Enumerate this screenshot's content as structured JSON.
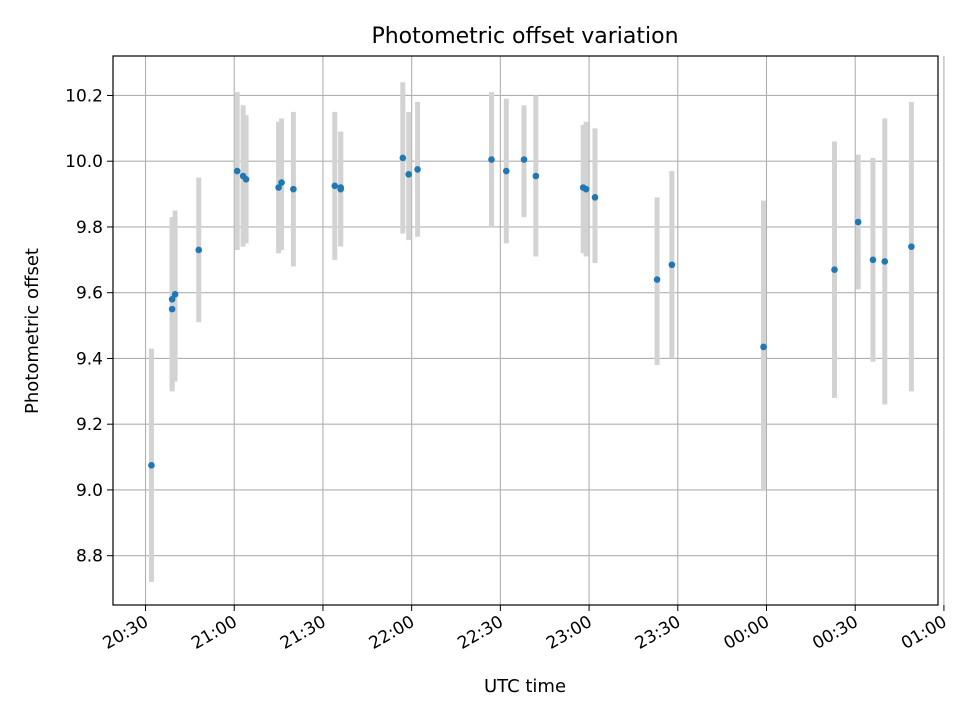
{
  "chart_data": {
    "type": "scatter",
    "title": "Photometric offset variation",
    "xlabel": "UTC time",
    "ylabel": "Photometric offset",
    "grid": true,
    "xlim": [
      "20:19",
      "00:58"
    ],
    "ylim": [
      8.65,
      10.32
    ],
    "x_ticks": [
      {
        "x": "20:30",
        "label": "20:30"
      },
      {
        "x": "21:00",
        "label": "21:00"
      },
      {
        "x": "21:30",
        "label": "21:30"
      },
      {
        "x": "22:00",
        "label": "22:00"
      },
      {
        "x": "22:30",
        "label": "22:30"
      },
      {
        "x": "23:00",
        "label": "23:00"
      },
      {
        "x": "23:30",
        "label": "23:30"
      },
      {
        "x": "00:00",
        "label": "00:00"
      },
      {
        "x": "00:30",
        "label": "00:30"
      },
      {
        "x": "01:00",
        "label": "01:00"
      }
    ],
    "y_ticks": [
      {
        "y": 8.8,
        "label": "8.8"
      },
      {
        "y": 9.0,
        "label": "9.0"
      },
      {
        "y": 9.2,
        "label": "9.2"
      },
      {
        "y": 9.4,
        "label": "9.4"
      },
      {
        "y": 9.6,
        "label": "9.6"
      },
      {
        "y": 9.8,
        "label": "9.8"
      },
      {
        "y": 10.0,
        "label": "10.0"
      },
      {
        "y": 10.2,
        "label": "10.2"
      }
    ],
    "series": [
      {
        "color": "#1f77b4",
        "error_color": "#d3d3d3",
        "points": [
          {
            "t": "20:32",
            "y": 9.075,
            "lo": 8.72,
            "hi": 9.43
          },
          {
            "t": "20:39",
            "y": 9.58,
            "lo": 9.31,
            "hi": 9.83
          },
          {
            "t": "20:39",
            "y": 9.55,
            "lo": 9.3,
            "hi": 9.82
          },
          {
            "t": "20:40",
            "y": 9.595,
            "lo": 9.33,
            "hi": 9.85
          },
          {
            "t": "20:48",
            "y": 9.73,
            "lo": 9.51,
            "hi": 9.95
          },
          {
            "t": "21:01",
            "y": 9.97,
            "lo": 9.73,
            "hi": 10.21
          },
          {
            "t": "21:03",
            "y": 9.955,
            "lo": 9.74,
            "hi": 10.17
          },
          {
            "t": "21:04",
            "y": 9.945,
            "lo": 9.75,
            "hi": 10.14
          },
          {
            "t": "21:15",
            "y": 9.92,
            "lo": 9.72,
            "hi": 10.12
          },
          {
            "t": "21:16",
            "y": 9.935,
            "lo": 9.73,
            "hi": 10.13
          },
          {
            "t": "21:20",
            "y": 9.915,
            "lo": 9.68,
            "hi": 10.15
          },
          {
            "t": "21:34",
            "y": 9.925,
            "lo": 9.7,
            "hi": 10.15
          },
          {
            "t": "21:36",
            "y": 9.915,
            "lo": 9.74,
            "hi": 10.09
          },
          {
            "t": "21:36",
            "y": 9.92,
            "lo": 9.75,
            "hi": 10.09
          },
          {
            "t": "21:57",
            "y": 10.01,
            "lo": 9.78,
            "hi": 10.24
          },
          {
            "t": "21:59",
            "y": 9.96,
            "lo": 9.76,
            "hi": 10.15
          },
          {
            "t": "22:02",
            "y": 9.975,
            "lo": 9.77,
            "hi": 10.18
          },
          {
            "t": "22:27",
            "y": 10.005,
            "lo": 9.8,
            "hi": 10.21
          },
          {
            "t": "22:32",
            "y": 9.97,
            "lo": 9.75,
            "hi": 10.19
          },
          {
            "t": "22:38",
            "y": 10.005,
            "lo": 9.83,
            "hi": 10.17
          },
          {
            "t": "22:42",
            "y": 9.955,
            "lo": 9.71,
            "hi": 10.2
          },
          {
            "t": "22:58",
            "y": 9.92,
            "lo": 9.72,
            "hi": 10.11
          },
          {
            "t": "22:59",
            "y": 9.915,
            "lo": 9.71,
            "hi": 10.12
          },
          {
            "t": "23:02",
            "y": 9.89,
            "lo": 9.69,
            "hi": 10.1
          },
          {
            "t": "23:23",
            "y": 9.64,
            "lo": 9.38,
            "hi": 9.89
          },
          {
            "t": "23:28",
            "y": 9.685,
            "lo": 9.4,
            "hi": 9.97
          },
          {
            "t": "23:59",
            "y": 9.435,
            "lo": 9.0,
            "hi": 9.88
          },
          {
            "t": "00:23",
            "y": 9.67,
            "lo": 9.28,
            "hi": 10.06
          },
          {
            "t": "00:31",
            "y": 9.815,
            "lo": 9.61,
            "hi": 10.02
          },
          {
            "t": "00:36",
            "y": 9.7,
            "lo": 9.39,
            "hi": 10.01
          },
          {
            "t": "00:40",
            "y": 9.695,
            "lo": 9.26,
            "hi": 10.13
          },
          {
            "t": "00:49",
            "y": 9.74,
            "lo": 9.3,
            "hi": 10.18
          }
        ]
      }
    ]
  }
}
